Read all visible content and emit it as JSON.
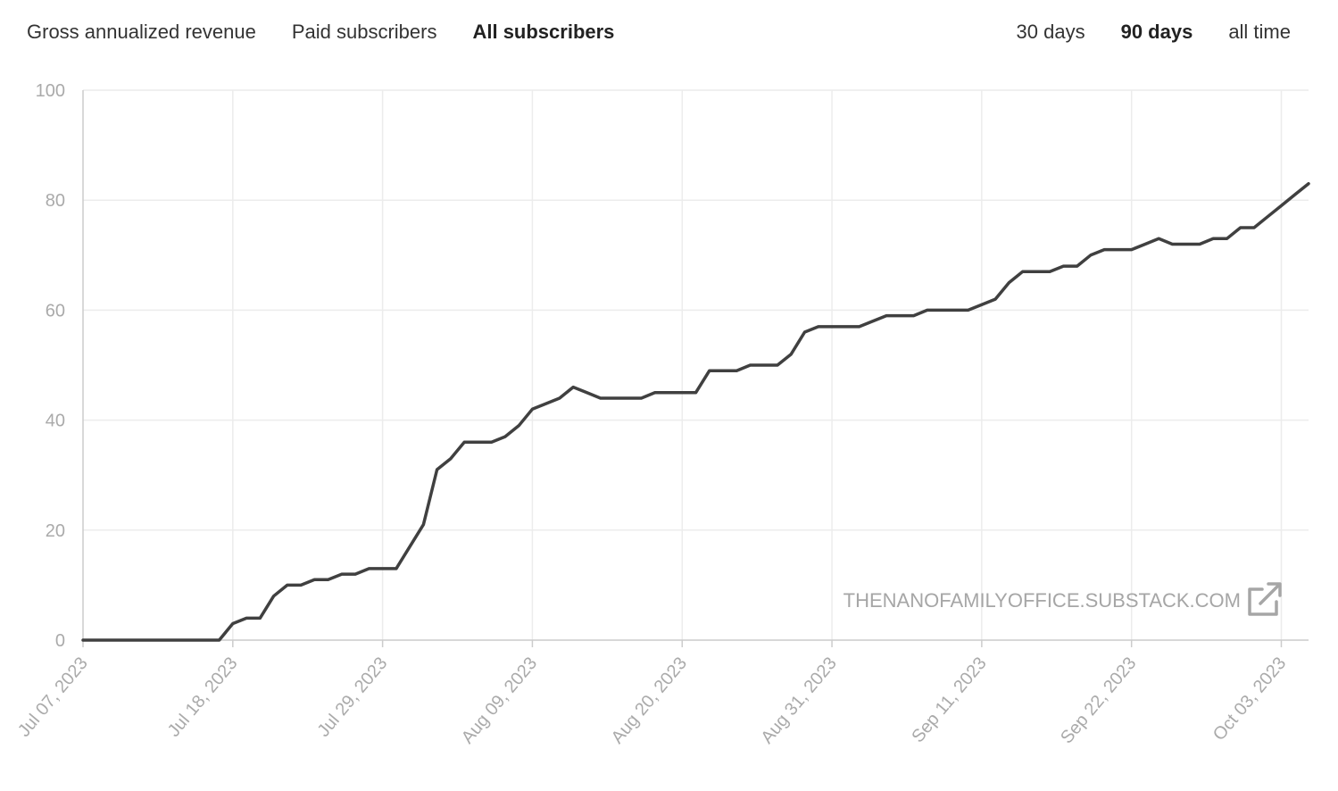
{
  "metric_tabs": [
    {
      "label": "Gross annualized revenue",
      "active": false
    },
    {
      "label": "Paid subscribers",
      "active": false
    },
    {
      "label": "All subscribers",
      "active": true
    }
  ],
  "range_tabs": [
    {
      "label": "30 days",
      "active": false
    },
    {
      "label": "90 days",
      "active": true
    },
    {
      "label": "all time",
      "active": false
    }
  ],
  "watermark": {
    "text": "THENANOFAMILYOFFICE.SUBSTACK.COM",
    "icon": "external-link-icon"
  },
  "colors": {
    "line": "#404040",
    "grid": "#ececec",
    "axis": "#cccccc",
    "tick_text": "#aaaaaa"
  },
  "chart_data": {
    "type": "line",
    "title": "",
    "xlabel": "",
    "ylabel": "",
    "ylim": [
      0,
      100
    ],
    "yticks": [
      0,
      20,
      40,
      60,
      80,
      100
    ],
    "xlim": [
      "2023-07-07",
      "2023-10-05"
    ],
    "xticks": [
      {
        "date": "2023-07-07",
        "label": "Jul 07, 2023"
      },
      {
        "date": "2023-07-18",
        "label": "Jul 18, 2023"
      },
      {
        "date": "2023-07-29",
        "label": "Jul 29, 2023"
      },
      {
        "date": "2023-08-09",
        "label": "Aug 09, 2023"
      },
      {
        "date": "2023-08-20",
        "label": "Aug 20, 2023"
      },
      {
        "date": "2023-08-31",
        "label": "Aug 31, 2023"
      },
      {
        "date": "2023-09-11",
        "label": "Sep 11, 2023"
      },
      {
        "date": "2023-09-22",
        "label": "Sep 22, 2023"
      },
      {
        "date": "2023-10-03",
        "label": "Oct 03, 2023"
      }
    ],
    "grid": true,
    "legend": "none",
    "series": [
      {
        "x": [
          "2023-07-07",
          "2023-07-08",
          "2023-07-09",
          "2023-07-10",
          "2023-07-11",
          "2023-07-12",
          "2023-07-13",
          "2023-07-14",
          "2023-07-15",
          "2023-07-16",
          "2023-07-17",
          "2023-07-18",
          "2023-07-19",
          "2023-07-20",
          "2023-07-21",
          "2023-07-22",
          "2023-07-23",
          "2023-07-24",
          "2023-07-25",
          "2023-07-26",
          "2023-07-27",
          "2023-07-28",
          "2023-07-29",
          "2023-07-30",
          "2023-07-31",
          "2023-08-01",
          "2023-08-02",
          "2023-08-03",
          "2023-08-04",
          "2023-08-05",
          "2023-08-06",
          "2023-08-07",
          "2023-08-08",
          "2023-08-09",
          "2023-08-10",
          "2023-08-11",
          "2023-08-12",
          "2023-08-13",
          "2023-08-14",
          "2023-08-15",
          "2023-08-16",
          "2023-08-17",
          "2023-08-18",
          "2023-08-19",
          "2023-08-20",
          "2023-08-21",
          "2023-08-22",
          "2023-08-23",
          "2023-08-24",
          "2023-08-25",
          "2023-08-26",
          "2023-08-27",
          "2023-08-28",
          "2023-08-29",
          "2023-08-30",
          "2023-08-31",
          "2023-09-01",
          "2023-09-02",
          "2023-09-03",
          "2023-09-04",
          "2023-09-05",
          "2023-09-06",
          "2023-09-07",
          "2023-09-08",
          "2023-09-09",
          "2023-09-10",
          "2023-09-11",
          "2023-09-12",
          "2023-09-13",
          "2023-09-14",
          "2023-09-15",
          "2023-09-16",
          "2023-09-17",
          "2023-09-18",
          "2023-09-19",
          "2023-09-20",
          "2023-09-21",
          "2023-09-22",
          "2023-09-23",
          "2023-09-24",
          "2023-09-25",
          "2023-09-26",
          "2023-09-27",
          "2023-09-28",
          "2023-09-29",
          "2023-09-30",
          "2023-10-01",
          "2023-10-02",
          "2023-10-03",
          "2023-10-04",
          "2023-10-05"
        ],
        "y": [
          0,
          0,
          0,
          0,
          0,
          0,
          0,
          0,
          0,
          0,
          0,
          3,
          4,
          4,
          8,
          10,
          10,
          11,
          11,
          12,
          12,
          13,
          13,
          13,
          17,
          21,
          31,
          33,
          36,
          36,
          36,
          37,
          39,
          42,
          43,
          44,
          46,
          45,
          44,
          44,
          44,
          44,
          45,
          45,
          45,
          45,
          49,
          49,
          49,
          50,
          50,
          50,
          52,
          56,
          57,
          57,
          57,
          57,
          58,
          59,
          59,
          59,
          60,
          60,
          60,
          60,
          61,
          62,
          65,
          67,
          67,
          67,
          68,
          68,
          70,
          71,
          71,
          71,
          72,
          73,
          72,
          72,
          72,
          73,
          73,
          75,
          75,
          77,
          79,
          81,
          83
        ]
      }
    ]
  }
}
